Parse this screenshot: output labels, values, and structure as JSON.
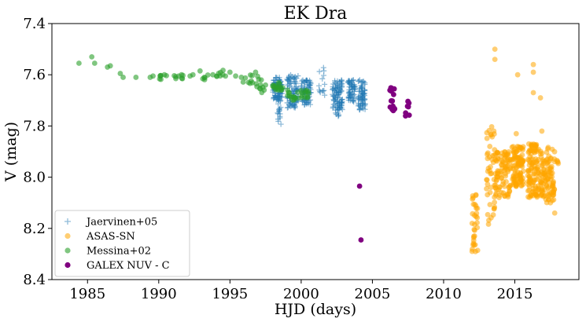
{
  "chart_data": {
    "type": "scatter",
    "title": "EK Dra",
    "xlabel": "HJD (days)",
    "ylabel": "V (mag)",
    "xlim": [
      1982.5,
      2019.5
    ],
    "ylim": [
      8.4,
      7.4
    ],
    "y_inverted": true,
    "x_ticks": [
      1985,
      1990,
      1995,
      2000,
      2005,
      2010,
      2015
    ],
    "y_ticks": [
      7.4,
      7.6,
      7.8,
      8.0,
      8.2,
      8.4
    ],
    "x_tick_labels": [
      "1985",
      "1990",
      "1995",
      "2000",
      "2005",
      "2010",
      "2015"
    ],
    "y_tick_labels": [
      "7.4",
      "7.6",
      "7.8",
      "8.0",
      "8.2",
      "8.4"
    ],
    "grid": false,
    "legend_position": "lower-left",
    "series": [
      {
        "name": "Jaervinen+05",
        "marker": "plus",
        "color": "#1f77b4",
        "alpha": 0.5,
        "clusters": [
          {
            "x": [
              1998.0,
              1998.7
            ],
            "y": [
              7.61,
              7.7
            ],
            "n": 90
          },
          {
            "x": [
              1998.3,
              1998.6
            ],
            "y": [
              7.7,
              7.8
            ],
            "n": 16
          },
          {
            "x": [
              1999.0,
              1999.8
            ],
            "y": [
              7.6,
              7.73
            ],
            "n": 85
          },
          {
            "x": [
              2000.0,
              2000.7
            ],
            "y": [
              7.62,
              7.72
            ],
            "n": 75
          },
          {
            "x": [
              2001.2,
              2001.7
            ],
            "y": [
              7.57,
              7.68
            ],
            "n": 14
          },
          {
            "x": [
              2002.2,
              2002.9
            ],
            "y": [
              7.62,
              7.74
            ],
            "n": 95
          },
          {
            "x": [
              2002.4,
              2002.8
            ],
            "y": [
              7.72,
              7.77
            ],
            "n": 10
          },
          {
            "x": [
              2003.3,
              2003.8
            ],
            "y": [
              7.62,
              7.71
            ],
            "n": 60
          },
          {
            "x": [
              2004.0,
              2004.5
            ],
            "y": [
              7.62,
              7.74
            ],
            "n": 70
          }
        ]
      },
      {
        "name": "ASAS-SN",
        "marker": "circle",
        "color": "#ffa500",
        "alpha": 0.55,
        "clusters": [
          {
            "x": [
              2012.0,
              2012.4
            ],
            "y": [
              8.05,
              8.3
            ],
            "n": 32
          },
          {
            "x": [
              2013.0,
              2013.6
            ],
            "y": [
              7.8,
              8.2
            ],
            "n": 45
          },
          {
            "x": [
              2013.6,
              2014.7
            ],
            "y": [
              7.9,
              8.08
            ],
            "n": 90
          },
          {
            "x": [
              2014.8,
              2015.6
            ],
            "y": [
              7.88,
              8.05
            ],
            "n": 105
          },
          {
            "x": [
              2015.9,
              2016.7
            ],
            "y": [
              7.87,
              8.08
            ],
            "n": 105
          },
          {
            "x": [
              2016.8,
              2017.8
            ],
            "y": [
              7.88,
              8.1
            ],
            "n": 105
          },
          {
            "x": [
              2017.9,
              2018.1
            ],
            "y": [
              7.93,
              7.98
            ],
            "n": 4
          }
        ],
        "points": [
          {
            "x": 2013.6,
            "y": 7.5
          },
          {
            "x": 2013.6,
            "y": 7.54
          },
          {
            "x": 2015.2,
            "y": 7.6
          },
          {
            "x": 2016.3,
            "y": 7.56
          },
          {
            "x": 2016.3,
            "y": 7.59
          },
          {
            "x": 2016.3,
            "y": 7.67
          },
          {
            "x": 2016.8,
            "y": 7.69
          },
          {
            "x": 2017.5,
            "y": 8.1
          },
          {
            "x": 2017.8,
            "y": 8.14
          },
          {
            "x": 2012.0,
            "y": 8.29
          },
          {
            "x": 2016.9,
            "y": 7.82
          },
          {
            "x": 2015.1,
            "y": 7.83
          }
        ]
      },
      {
        "name": "Messina+02",
        "marker": "circle",
        "color": "#2ca02c",
        "alpha": 0.6,
        "points": [
          {
            "x": 1984.4,
            "y": 7.555
          },
          {
            "x": 1985.3,
            "y": 7.53
          },
          {
            "x": 1985.5,
            "y": 7.555
          },
          {
            "x": 1986.4,
            "y": 7.57
          },
          {
            "x": 1986.6,
            "y": 7.565
          },
          {
            "x": 1987.3,
            "y": 7.595
          },
          {
            "x": 1987.5,
            "y": 7.61
          },
          {
            "x": 1988.4,
            "y": 7.61
          },
          {
            "x": 1989.4,
            "y": 7.61
          },
          {
            "x": 1989.6,
            "y": 7.605
          },
          {
            "x": 1990.1,
            "y": 7.605
          },
          {
            "x": 1990.4,
            "y": 7.6
          },
          {
            "x": 1991.2,
            "y": 7.615
          },
          {
            "x": 1991.4,
            "y": 7.605
          },
          {
            "x": 1991.6,
            "y": 7.6
          },
          {
            "x": 1992.2,
            "y": 7.605
          },
          {
            "x": 1992.4,
            "y": 7.6
          },
          {
            "x": 1992.9,
            "y": 7.585
          },
          {
            "x": 1993.2,
            "y": 7.61
          },
          {
            "x": 1993.8,
            "y": 7.6
          },
          {
            "x": 1994.2,
            "y": 7.595
          },
          {
            "x": 1994.5,
            "y": 7.6
          },
          {
            "x": 1995.0,
            "y": 7.59
          },
          {
            "x": 1995.4,
            "y": 7.605
          },
          {
            "x": 1995.8,
            "y": 7.61
          },
          {
            "x": 1996.3,
            "y": 7.63
          },
          {
            "x": 1996.8,
            "y": 7.59
          },
          {
            "x": 1997.2,
            "y": 7.62
          },
          {
            "x": 1997.5,
            "y": 7.64
          },
          {
            "x": 1998.7,
            "y": 7.65
          }
        ],
        "clusters": [
          {
            "x": [
              1990.0,
              1990.6
            ],
            "y": [
              7.6,
              7.63
            ],
            "n": 5
          },
          {
            "x": [
              1991.0,
              1991.8
            ],
            "y": [
              7.6,
              7.63
            ],
            "n": 5
          },
          {
            "x": [
              1993.0,
              1993.6
            ],
            "y": [
              7.6,
              7.625
            ],
            "n": 4
          },
          {
            "x": [
              1994.0,
              1994.7
            ],
            "y": [
              7.58,
              7.61
            ],
            "n": 6
          },
          {
            "x": [
              1995.8,
              1996.6
            ],
            "y": [
              7.6,
              7.64
            ],
            "n": 7
          },
          {
            "x": [
              1996.8,
              1997.6
            ],
            "y": [
              7.6,
              7.67
            ],
            "n": 10
          },
          {
            "x": [
              1998.0,
              1998.8
            ],
            "y": [
              7.63,
              7.66
            ],
            "n": 16
          },
          {
            "x": [
              1999.0,
              1999.8
            ],
            "y": [
              7.66,
              7.7
            ],
            "n": 14
          },
          {
            "x": [
              2000.0,
              2000.6
            ],
            "y": [
              7.66,
              7.69
            ],
            "n": 12
          }
        ]
      },
      {
        "name": "GALEX NUV - C",
        "marker": "circle",
        "color": "#800080",
        "alpha": 1.0,
        "clusters": [
          {
            "x": [
              2006.2,
              2006.6
            ],
            "y": [
              7.64,
              7.74
            ],
            "n": 14
          },
          {
            "x": [
              2007.3,
              2007.6
            ],
            "y": [
              7.7,
              7.77
            ],
            "n": 7
          }
        ],
        "points": [
          {
            "x": 2004.1,
            "y": 8.035
          },
          {
            "x": 2004.2,
            "y": 8.245
          }
        ]
      }
    ]
  }
}
